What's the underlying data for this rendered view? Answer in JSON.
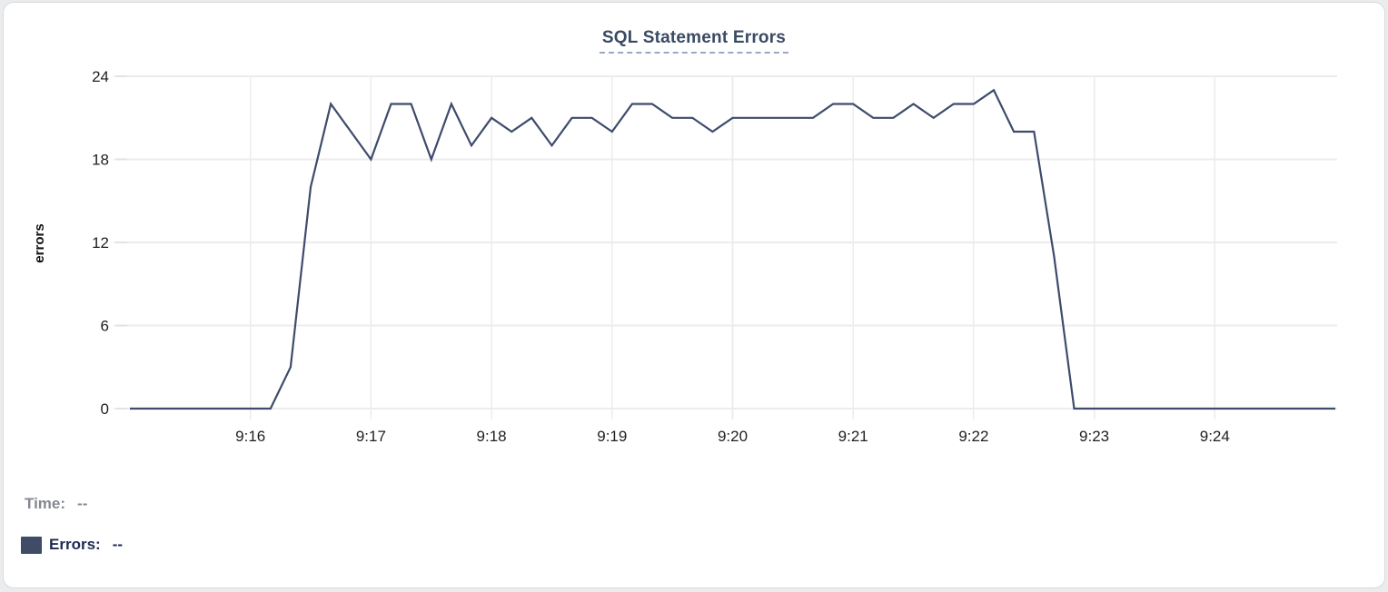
{
  "title": "SQL Statement Errors",
  "legend": {
    "time_label": "Time:",
    "time_value": "--",
    "errors_label": "Errors:",
    "errors_value": "--"
  },
  "colors": {
    "line": "#3e4b6c",
    "swatch": "#3e4c68",
    "title_text": "#394a63",
    "title_underline": "#9aa8c7",
    "legend_time_text": "#85888e",
    "legend_errors_text": "#1e2b50",
    "grid": "#ececec",
    "tick": "#e2e2e2",
    "tick_label": "#1f1f1f"
  },
  "chart_data": {
    "type": "line",
    "title": "SQL Statement Errors",
    "xlabel": "",
    "ylabel": "errors",
    "series_name": "Errors",
    "legend_position": "bottom-left",
    "grid": true,
    "ylim": [
      0,
      24
    ],
    "yticks": [
      0,
      6,
      12,
      18,
      24
    ],
    "xticks": [
      "9:16",
      "9:17",
      "9:18",
      "9:19",
      "9:20",
      "9:21",
      "9:22",
      "9:23",
      "9:24"
    ],
    "x_time_range": [
      "9:15:00",
      "9:25:00"
    ],
    "sample_interval_seconds": 10,
    "times": [
      "9:15:00",
      "9:15:10",
      "9:15:20",
      "9:15:30",
      "9:15:40",
      "9:15:50",
      "9:16:00",
      "9:16:10",
      "9:16:20",
      "9:16:30",
      "9:16:40",
      "9:16:50",
      "9:17:00",
      "9:17:10",
      "9:17:20",
      "9:17:30",
      "9:17:40",
      "9:17:50",
      "9:18:00",
      "9:18:10",
      "9:18:20",
      "9:18:30",
      "9:18:40",
      "9:18:50",
      "9:19:00",
      "9:19:10",
      "9:19:20",
      "9:19:30",
      "9:19:40",
      "9:19:50",
      "9:20:00",
      "9:20:10",
      "9:20:20",
      "9:20:30",
      "9:20:40",
      "9:20:50",
      "9:21:00",
      "9:21:10",
      "9:21:20",
      "9:21:30",
      "9:21:40",
      "9:21:50",
      "9:22:00",
      "9:22:10",
      "9:22:20",
      "9:22:30",
      "9:22:40",
      "9:22:50",
      "9:23:00",
      "9:23:10",
      "9:23:20",
      "9:23:30",
      "9:23:40",
      "9:23:50",
      "9:24:00",
      "9:24:10",
      "9:24:20",
      "9:24:30",
      "9:24:40",
      "9:24:50",
      "9:25:00"
    ],
    "values": [
      0,
      0,
      0,
      0,
      0,
      0,
      0,
      0,
      3,
      16,
      22,
      20,
      18,
      22,
      22,
      18,
      22,
      19,
      21,
      20,
      21,
      19,
      21,
      21,
      20,
      22,
      22,
      21,
      21,
      20,
      21,
      21,
      21,
      21,
      21,
      22,
      22,
      21,
      21,
      22,
      21,
      22,
      22,
      23,
      20,
      20,
      11,
      0,
      0,
      0,
      0,
      0,
      0,
      0,
      0,
      0,
      0,
      0,
      0,
      0,
      0
    ]
  }
}
